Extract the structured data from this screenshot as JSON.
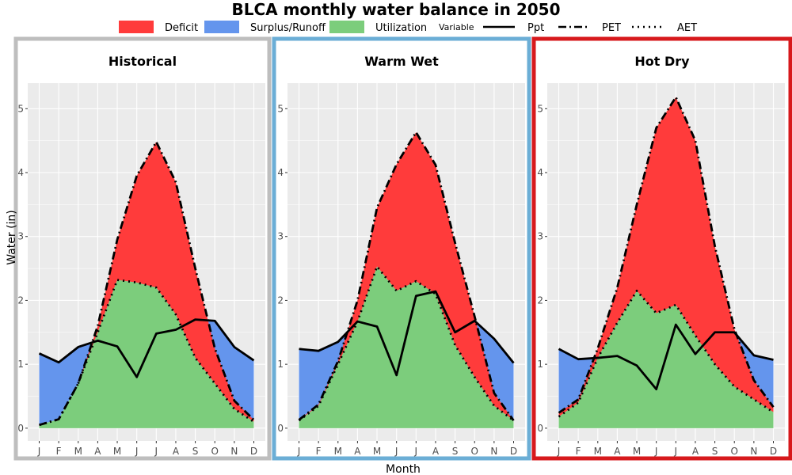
{
  "chart_data": {
    "title": "BLCA monthly water balance in 2050",
    "xlabel": "Month",
    "ylabel": "Water (in)",
    "type": "area",
    "ylim": [
      -0.2,
      5.4
    ],
    "yticks": [
      0,
      1,
      2,
      3,
      4,
      5
    ],
    "months": [
      "J",
      "F",
      "M",
      "A",
      "M",
      "J",
      "J",
      "A",
      "S",
      "O",
      "N",
      "D"
    ],
    "legend": {
      "position": "top",
      "fill": [
        {
          "label": "Deficit",
          "color": "#ff3b3b"
        },
        {
          "label": "Surplus/Runoff",
          "color": "#6495ed"
        },
        {
          "label": "Utilization",
          "color": "#7ccd7c"
        }
      ],
      "variable_title": "Variable",
      "lines": [
        {
          "label": "Ppt",
          "dash": "solid"
        },
        {
          "label": "PET",
          "dash": "dotdash"
        },
        {
          "label": "AET",
          "dash": "dotted"
        }
      ]
    },
    "panels": [
      {
        "title": "Historical",
        "border_color": "#bebebe",
        "ppt": [
          1.17,
          1.03,
          1.27,
          1.37,
          1.28,
          0.8,
          1.48,
          1.54,
          1.7,
          1.68,
          1.27,
          1.06
        ],
        "pet": [
          0.05,
          0.14,
          0.7,
          1.6,
          2.95,
          3.95,
          4.48,
          3.85,
          2.5,
          1.25,
          0.43,
          0.13
        ],
        "aet": [
          0.05,
          0.14,
          0.7,
          1.5,
          2.32,
          2.28,
          2.2,
          1.78,
          1.1,
          0.7,
          0.3,
          0.1
        ]
      },
      {
        "title": "Warm Wet",
        "border_color": "#6baed6",
        "ppt": [
          1.24,
          1.21,
          1.35,
          1.67,
          1.59,
          0.83,
          2.07,
          2.14,
          1.5,
          1.68,
          1.4,
          1.02
        ],
        "pet": [
          0.13,
          0.37,
          1.05,
          2.0,
          3.45,
          4.13,
          4.63,
          4.12,
          2.9,
          1.75,
          0.55,
          0.12
        ],
        "aet": [
          0.12,
          0.35,
          1.0,
          1.67,
          2.53,
          2.15,
          2.3,
          2.1,
          1.3,
          0.8,
          0.35,
          0.12
        ]
      },
      {
        "title": "Hot Dry",
        "border_color": "#d7191c",
        "ppt": [
          1.24,
          1.08,
          1.1,
          1.13,
          0.98,
          0.61,
          1.62,
          1.16,
          1.5,
          1.5,
          1.14,
          1.07
        ],
        "pet": [
          0.24,
          0.45,
          1.25,
          2.2,
          3.5,
          4.7,
          5.18,
          4.5,
          2.85,
          1.55,
          0.75,
          0.33
        ],
        "aet": [
          0.18,
          0.4,
          1.1,
          1.65,
          2.15,
          1.8,
          1.93,
          1.45,
          1.0,
          0.65,
          0.45,
          0.25
        ]
      }
    ]
  }
}
